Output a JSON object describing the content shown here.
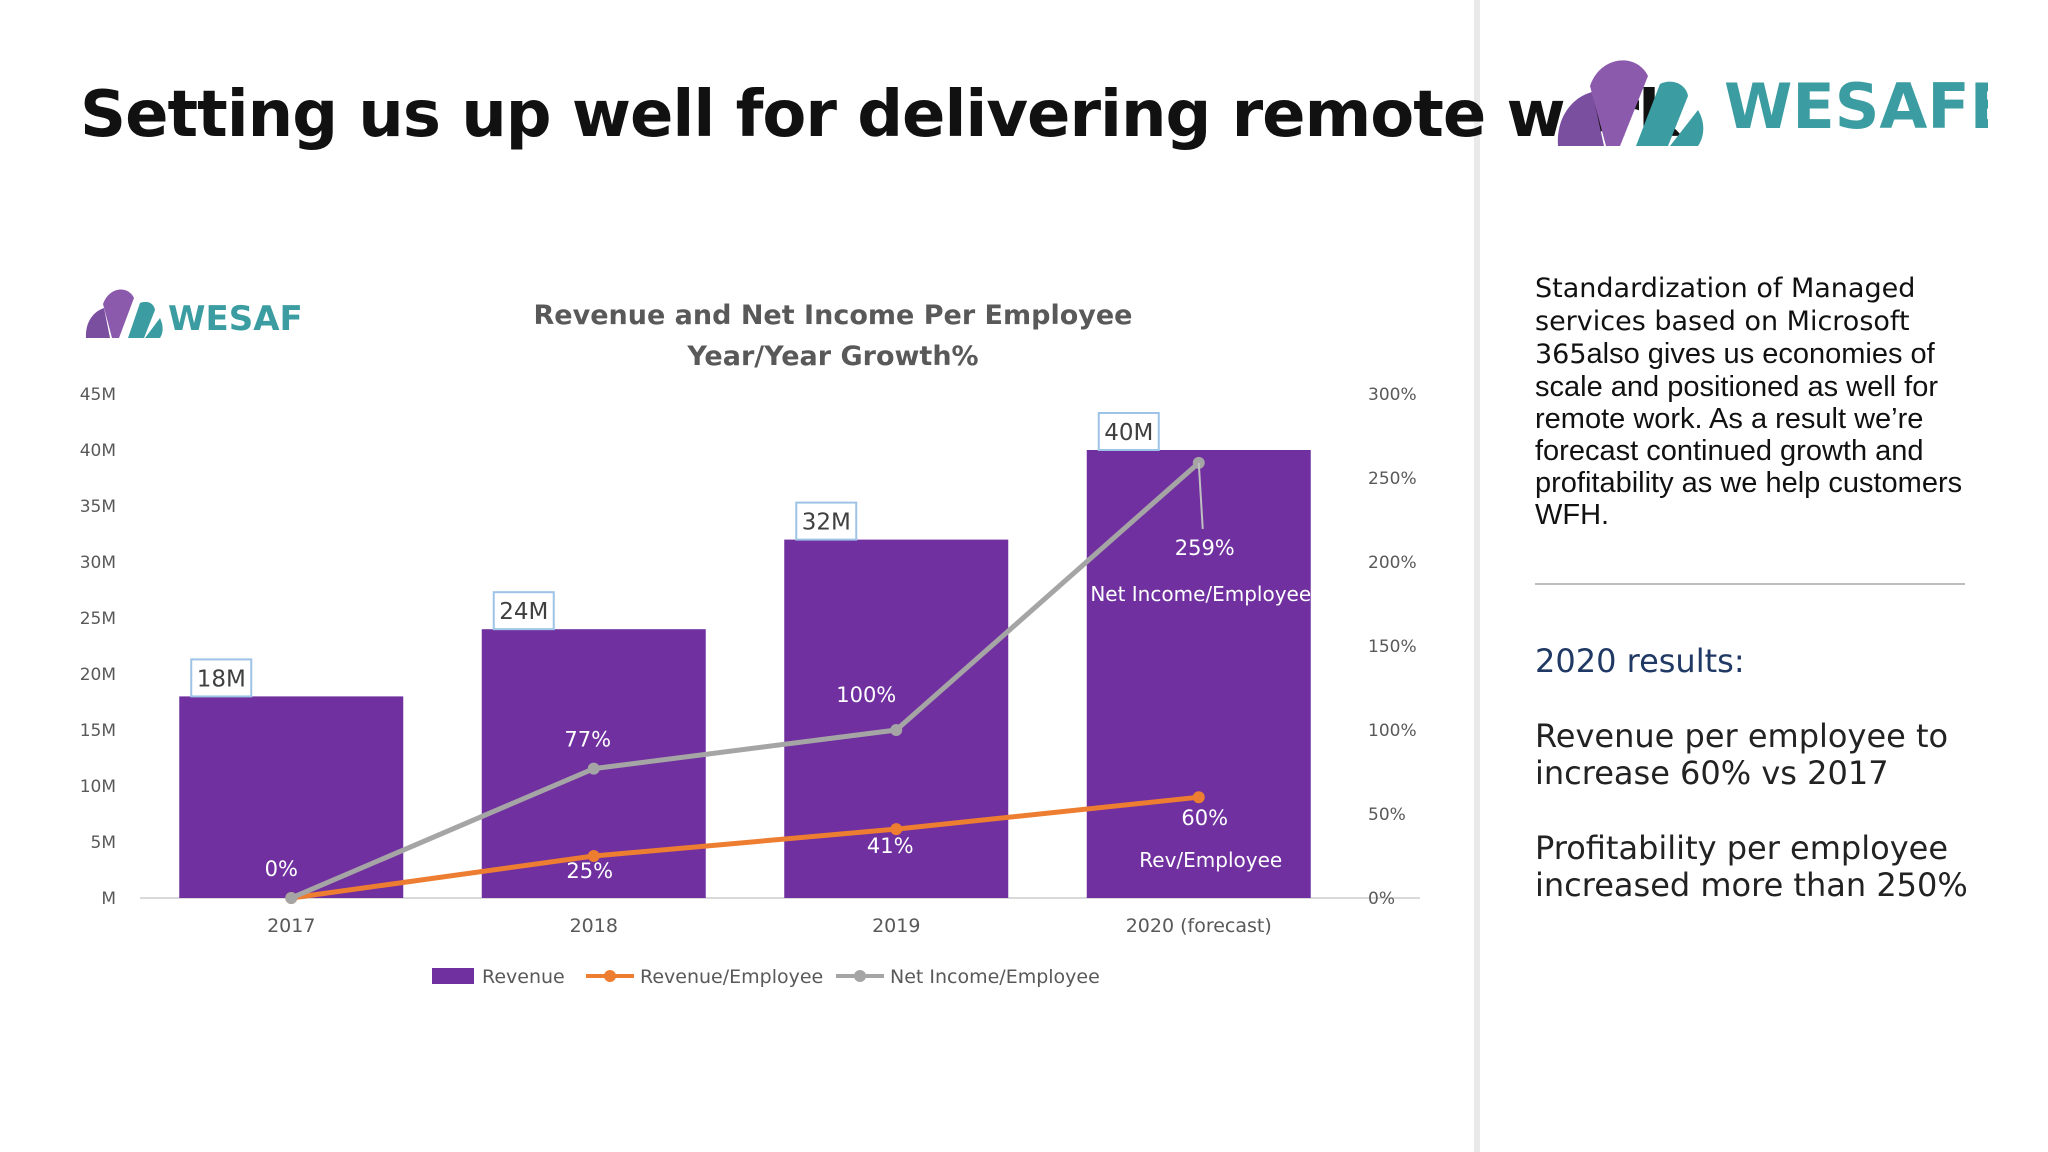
{
  "slide": {
    "title": "Setting us up well for delivering remote work"
  },
  "logo": {
    "brand_name": "WESAFE",
    "colors": {
      "purple": "#7b4fa0",
      "teal": "#3b9da1"
    }
  },
  "side_panel": {
    "description_lead": "Standardization of Managed services based on Microsoft 365",
    "description_rest": "also gives us economies of scale and positioned as well for remote work. As a result we’re forecast continued growth and profitability as we help customers WFH.",
    "results_heading": "2020 results:",
    "results": [
      "Revenue per employee to increase 60% vs 2017",
      "Profitability per employee increased more than 250%"
    ]
  },
  "chart_data": {
    "type": "bar",
    "title": "Revenue and Net Income Per Employee",
    "subtitle": "Year/Year Growth%",
    "categories": [
      "2017",
      "2018",
      "2019",
      "2020 (forecast)"
    ],
    "y_left": {
      "min": 0,
      "max": 45,
      "step": 5,
      "ticks": [
        "M",
        "5M",
        "10M",
        "15M",
        "20M",
        "25M",
        "30M",
        "35M",
        "40M",
        "45M"
      ]
    },
    "y_right": {
      "min": 0,
      "max": 300,
      "step": 50,
      "ticks": [
        "0%",
        "50%",
        "100%",
        "150%",
        "200%",
        "250%",
        "300%"
      ]
    },
    "series": [
      {
        "name": "Revenue",
        "kind": "bar",
        "axis": "left",
        "color": "#7030a0",
        "values": [
          18,
          24,
          32,
          40
        ],
        "labels": [
          "18M",
          "24M",
          "32M",
          "40M"
        ]
      },
      {
        "name": "Revenue/Employee",
        "kind": "line",
        "axis": "right",
        "color": "#ed7d31",
        "values": [
          0,
          25,
          41,
          60
        ],
        "labels": [
          "0%",
          "25%",
          "41%",
          "60%"
        ]
      },
      {
        "name": "Net Income/Employee",
        "kind": "line",
        "axis": "right",
        "color": "#a5a5a5",
        "values": [
          0,
          77,
          100,
          259
        ],
        "labels": [
          "0%",
          "77%",
          "100%",
          "259%"
        ]
      }
    ],
    "annotations": [
      "Net Income/Employee",
      "Rev/Employee"
    ],
    "legend": [
      "Revenue",
      "Revenue/Employee",
      "Net Income/Employee"
    ],
    "legend_position": "bottom"
  }
}
